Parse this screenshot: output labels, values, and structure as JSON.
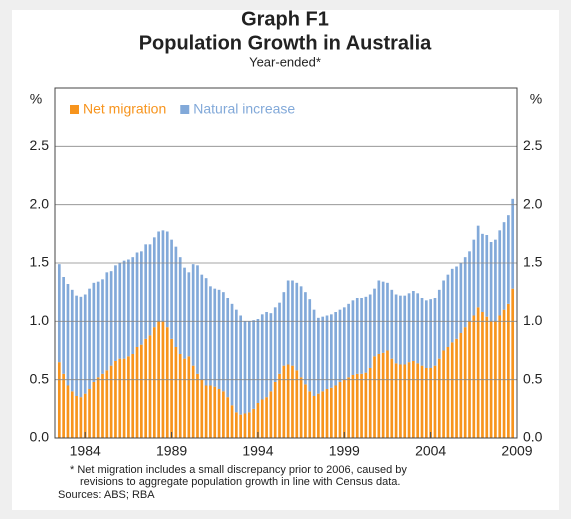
{
  "chart_data": {
    "type": "stacked_bar",
    "title": "Graph F1",
    "subtitle": "Population Growth in Australia",
    "note": "Year-ended*",
    "y_unit": "%",
    "footnote": "*   Net migration includes a small discrepancy prior to 2006, caused by revisions to aggregate population growth in line with Census data.",
    "footnote_lines": [
      "*   Net migration includes a small discrepancy prior to 2006, caused by",
      "revisions to aggregate population growth in line with Census data."
    ],
    "source": "Sources: ABS; RBA",
    "legend": "top-left",
    "xlim": [
      1982.25,
      2009
    ],
    "xticks": [
      1984,
      1989,
      1994,
      1999,
      2004,
      2009
    ],
    "ylim": [
      0,
      3
    ],
    "yticks": [
      {
        "value": 0,
        "label": "0.0"
      },
      0.5,
      {
        "value": 1,
        "label": "1.0"
      },
      1.5,
      {
        "value": 2,
        "label": "2.0"
      },
      2.5
    ],
    "x": [
      1982.5,
      1982.75,
      1983,
      1983.25,
      1983.5,
      1983.75,
      1984,
      1984.25,
      1984.5,
      1984.75,
      1985,
      1985.25,
      1985.5,
      1985.75,
      1986,
      1986.25,
      1986.5,
      1986.75,
      1987,
      1987.25,
      1987.5,
      1987.75,
      1988,
      1988.25,
      1988.5,
      1988.75,
      1989,
      1989.25,
      1989.5,
      1989.75,
      1990,
      1990.25,
      1990.5,
      1990.75,
      1991,
      1991.25,
      1991.5,
      1991.75,
      1992,
      1992.25,
      1992.5,
      1992.75,
      1993,
      1993.25,
      1993.5,
      1993.75,
      1994,
      1994.25,
      1994.5,
      1994.75,
      1995,
      1995.25,
      1995.5,
      1995.75,
      1996,
      1996.25,
      1996.5,
      1996.75,
      1997,
      1997.25,
      1997.5,
      1997.75,
      1998,
      1998.25,
      1998.5,
      1998.75,
      1999,
      1999.25,
      1999.5,
      1999.75,
      2000,
      2000.25,
      2000.5,
      2000.75,
      2001,
      2001.25,
      2001.5,
      2001.75,
      2002,
      2002.25,
      2002.5,
      2002.75,
      2003,
      2003.25,
      2003.5,
      2003.75,
      2004,
      2004.25,
      2004.5,
      2004.75,
      2005,
      2005.25,
      2005.5,
      2005.75,
      2006,
      2006.25,
      2006.5,
      2006.75,
      2007,
      2007.25,
      2007.5,
      2007.75,
      2008,
      2008.25,
      2008.5,
      2008.75
    ],
    "series": [
      {
        "name": "Net migration",
        "color": "#f7941d",
        "values": [
          0.65,
          0.55,
          0.45,
          0.4,
          0.36,
          0.35,
          0.38,
          0.42,
          0.48,
          0.52,
          0.55,
          0.58,
          0.62,
          0.66,
          0.68,
          0.68,
          0.7,
          0.72,
          0.78,
          0.8,
          0.85,
          0.88,
          0.95,
          1.0,
          1.0,
          0.95,
          0.85,
          0.78,
          0.72,
          0.68,
          0.7,
          0.62,
          0.55,
          0.5,
          0.45,
          0.45,
          0.44,
          0.42,
          0.4,
          0.35,
          0.28,
          0.22,
          0.2,
          0.21,
          0.22,
          0.25,
          0.3,
          0.33,
          0.35,
          0.4,
          0.48,
          0.55,
          0.62,
          0.63,
          0.62,
          0.58,
          0.52,
          0.46,
          0.4,
          0.36,
          0.38,
          0.4,
          0.42,
          0.43,
          0.45,
          0.48,
          0.5,
          0.52,
          0.54,
          0.55,
          0.55,
          0.56,
          0.6,
          0.7,
          0.72,
          0.73,
          0.75,
          0.68,
          0.64,
          0.63,
          0.63,
          0.65,
          0.66,
          0.64,
          0.62,
          0.6,
          0.6,
          0.62,
          0.68,
          0.75,
          0.78,
          0.82,
          0.85,
          0.9,
          0.95,
          1.0,
          1.05,
          1.12,
          1.08,
          1.04,
          1.0,
          1.0,
          1.05,
          1.1,
          1.15,
          1.28
        ]
      },
      {
        "name": "Natural increase",
        "color": "#82a9d9",
        "values": [
          0.84,
          0.83,
          0.87,
          0.87,
          0.86,
          0.86,
          0.85,
          0.86,
          0.85,
          0.82,
          0.81,
          0.84,
          0.81,
          0.82,
          0.82,
          0.84,
          0.83,
          0.83,
          0.81,
          0.8,
          0.81,
          0.78,
          0.77,
          0.77,
          0.78,
          0.82,
          0.85,
          0.86,
          0.83,
          0.78,
          0.72,
          0.87,
          0.93,
          0.9,
          0.92,
          0.85,
          0.84,
          0.85,
          0.85,
          0.85,
          0.87,
          0.88,
          0.85,
          0.79,
          0.78,
          0.76,
          0.72,
          0.73,
          0.73,
          0.67,
          0.64,
          0.61,
          0.63,
          0.72,
          0.73,
          0.75,
          0.78,
          0.79,
          0.79,
          0.74,
          0.65,
          0.64,
          0.63,
          0.63,
          0.63,
          0.62,
          0.62,
          0.63,
          0.64,
          0.65,
          0.65,
          0.65,
          0.63,
          0.58,
          0.63,
          0.61,
          0.58,
          0.59,
          0.59,
          0.59,
          0.59,
          0.59,
          0.6,
          0.6,
          0.58,
          0.58,
          0.59,
          0.58,
          0.59,
          0.6,
          0.62,
          0.63,
          0.62,
          0.6,
          0.6,
          0.6,
          0.65,
          0.7,
          0.67,
          0.7,
          0.68,
          0.7,
          0.73,
          0.75,
          0.76,
          0.77
        ]
      }
    ]
  }
}
